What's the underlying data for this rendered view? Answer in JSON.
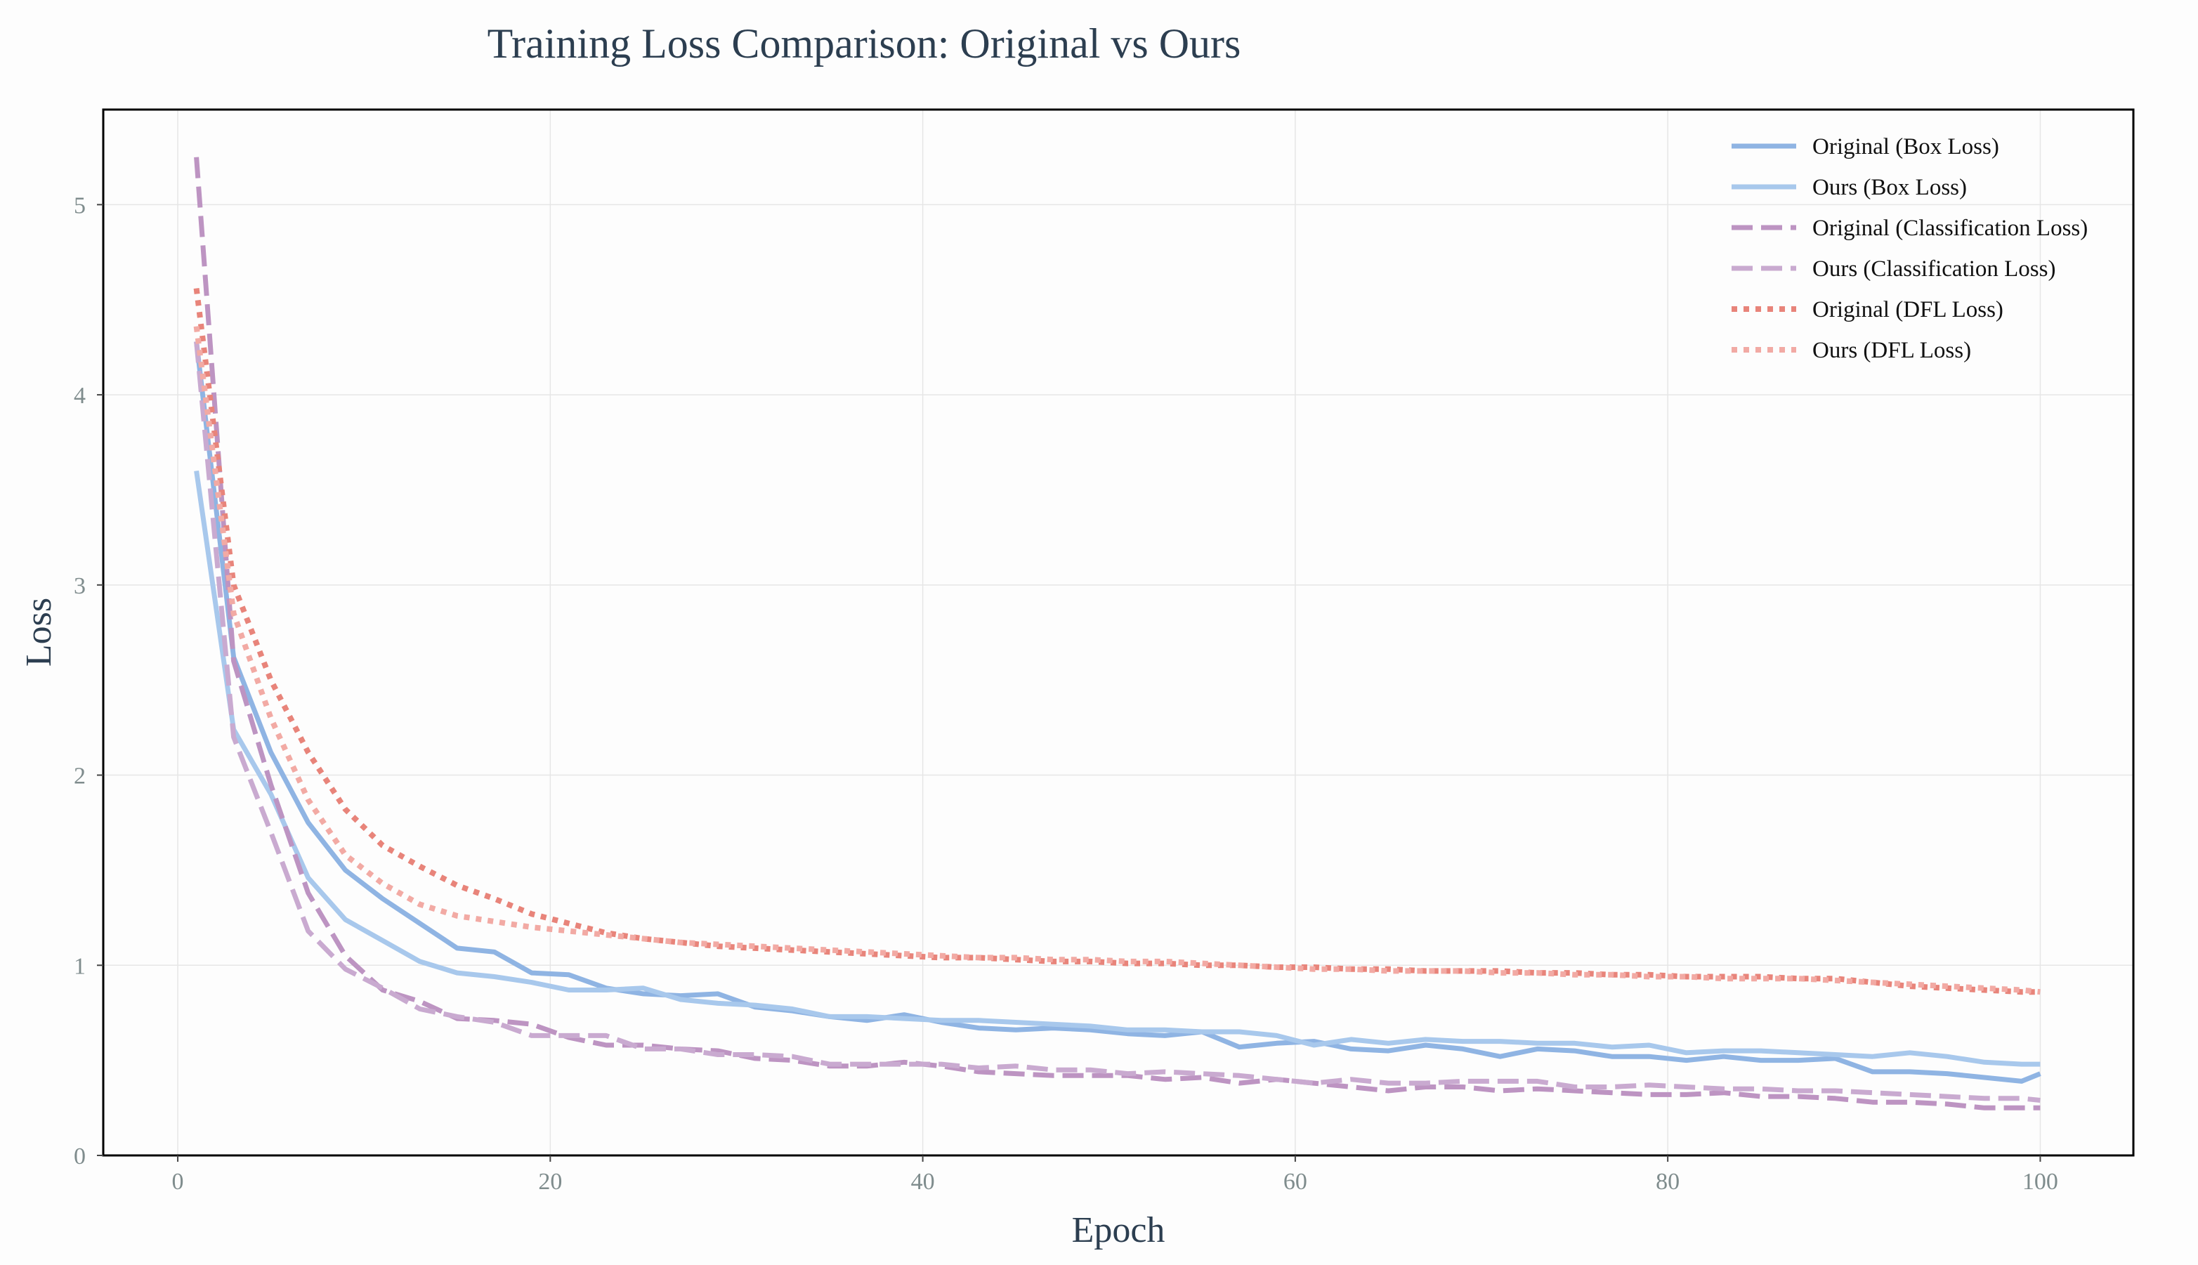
{
  "chart_data": {
    "type": "line",
    "title": "Training Loss Comparison: Original vs Ours",
    "xlabel": "Epoch",
    "ylabel": "Loss",
    "xlim": [
      -4,
      105
    ],
    "ylim": [
      0,
      5.5
    ],
    "xticks": [
      0,
      20,
      40,
      60,
      80,
      100
    ],
    "yticks": [
      0,
      1,
      2,
      3,
      4,
      5
    ],
    "grid": true,
    "legend_position": "top-right",
    "series": [
      {
        "name": "Original (Box Loss)",
        "color": "#8fb4e3",
        "dash": "solid",
        "width": 7,
        "x": [
          1,
          3,
          5,
          7,
          9,
          11,
          13,
          15,
          17,
          19,
          21,
          23,
          25,
          27,
          29,
          31,
          33,
          35,
          37,
          39,
          41,
          43,
          45,
          47,
          49,
          51,
          53,
          55,
          57,
          59,
          61,
          63,
          65,
          67,
          69,
          71,
          73,
          75,
          77,
          79,
          81,
          83,
          85,
          87,
          89,
          91,
          93,
          95,
          97,
          99,
          100
        ],
        "y": [
          4.28,
          2.62,
          2.12,
          1.75,
          1.5,
          1.35,
          1.22,
          1.09,
          1.07,
          0.96,
          0.95,
          0.88,
          0.85,
          0.84,
          0.85,
          0.78,
          0.76,
          0.73,
          0.71,
          0.74,
          0.7,
          0.67,
          0.66,
          0.67,
          0.66,
          0.64,
          0.63,
          0.65,
          0.57,
          0.59,
          0.6,
          0.56,
          0.55,
          0.58,
          0.56,
          0.52,
          0.56,
          0.55,
          0.52,
          0.52,
          0.5,
          0.52,
          0.5,
          0.5,
          0.51,
          0.44,
          0.44,
          0.43,
          0.41,
          0.39,
          0.43
        ]
      },
      {
        "name": "Ours (Box Loss)",
        "color": "#a8c8ec",
        "dash": "solid",
        "width": 7,
        "x": [
          1,
          3,
          5,
          7,
          9,
          11,
          13,
          15,
          17,
          19,
          21,
          23,
          25,
          27,
          29,
          31,
          33,
          35,
          37,
          39,
          41,
          43,
          45,
          47,
          49,
          51,
          53,
          55,
          57,
          59,
          61,
          63,
          65,
          67,
          69,
          71,
          73,
          75,
          77,
          79,
          81,
          83,
          85,
          87,
          89,
          91,
          93,
          95,
          97,
          99,
          100
        ],
        "y": [
          3.6,
          2.24,
          1.9,
          1.46,
          1.24,
          1.13,
          1.02,
          0.96,
          0.94,
          0.91,
          0.87,
          0.87,
          0.88,
          0.82,
          0.8,
          0.79,
          0.77,
          0.73,
          0.73,
          0.72,
          0.71,
          0.71,
          0.7,
          0.69,
          0.68,
          0.66,
          0.66,
          0.65,
          0.65,
          0.63,
          0.58,
          0.61,
          0.59,
          0.61,
          0.6,
          0.6,
          0.59,
          0.59,
          0.57,
          0.58,
          0.54,
          0.55,
          0.55,
          0.54,
          0.53,
          0.52,
          0.54,
          0.52,
          0.49,
          0.48,
          0.48
        ]
      },
      {
        "name": "Original (Classification Loss)",
        "color": "#bd94c2",
        "dash": "dashed",
        "width": 7,
        "x": [
          1,
          3,
          5,
          7,
          9,
          11,
          13,
          15,
          17,
          19,
          21,
          23,
          25,
          27,
          29,
          31,
          33,
          35,
          37,
          39,
          41,
          43,
          45,
          47,
          49,
          51,
          53,
          55,
          57,
          59,
          61,
          63,
          65,
          67,
          69,
          71,
          73,
          75,
          77,
          79,
          81,
          83,
          85,
          87,
          89,
          91,
          93,
          95,
          97,
          99,
          100
        ],
        "y": [
          5.25,
          2.6,
          1.95,
          1.38,
          1.05,
          0.87,
          0.81,
          0.72,
          0.71,
          0.69,
          0.62,
          0.58,
          0.58,
          0.56,
          0.55,
          0.51,
          0.5,
          0.47,
          0.47,
          0.49,
          0.47,
          0.44,
          0.43,
          0.42,
          0.42,
          0.42,
          0.4,
          0.41,
          0.38,
          0.4,
          0.38,
          0.36,
          0.34,
          0.36,
          0.36,
          0.34,
          0.35,
          0.34,
          0.33,
          0.32,
          0.32,
          0.33,
          0.31,
          0.31,
          0.3,
          0.28,
          0.28,
          0.27,
          0.25,
          0.25,
          0.25
        ]
      },
      {
        "name": "Ours (Classification Loss)",
        "color": "#c9aad0",
        "dash": "dashed",
        "width": 7,
        "x": [
          1,
          3,
          5,
          7,
          9,
          11,
          13,
          15,
          17,
          19,
          21,
          23,
          25,
          27,
          29,
          31,
          33,
          35,
          37,
          39,
          41,
          43,
          45,
          47,
          49,
          51,
          53,
          55,
          57,
          59,
          61,
          63,
          65,
          67,
          69,
          71,
          73,
          75,
          77,
          79,
          81,
          83,
          85,
          87,
          89,
          91,
          93,
          95,
          97,
          99,
          100
        ],
        "y": [
          4.28,
          2.2,
          1.7,
          1.18,
          0.98,
          0.88,
          0.77,
          0.73,
          0.7,
          0.63,
          0.63,
          0.63,
          0.56,
          0.56,
          0.53,
          0.53,
          0.52,
          0.48,
          0.48,
          0.48,
          0.48,
          0.46,
          0.47,
          0.45,
          0.45,
          0.43,
          0.44,
          0.43,
          0.42,
          0.4,
          0.38,
          0.4,
          0.38,
          0.38,
          0.39,
          0.39,
          0.39,
          0.36,
          0.36,
          0.37,
          0.36,
          0.35,
          0.35,
          0.34,
          0.34,
          0.33,
          0.32,
          0.31,
          0.3,
          0.3,
          0.29
        ]
      },
      {
        "name": "Original (DFL Loss)",
        "color": "#e8847a",
        "dash": "dotted",
        "width": 8,
        "x": [
          1,
          3,
          5,
          7,
          9,
          11,
          13,
          15,
          17,
          19,
          21,
          23,
          25,
          27,
          29,
          31,
          33,
          35,
          37,
          39,
          41,
          43,
          45,
          47,
          49,
          51,
          53,
          55,
          57,
          59,
          61,
          63,
          65,
          67,
          69,
          71,
          73,
          75,
          77,
          79,
          81,
          83,
          85,
          87,
          89,
          91,
          93,
          95,
          97,
          99,
          100
        ],
        "y": [
          4.56,
          3.0,
          2.5,
          2.12,
          1.82,
          1.63,
          1.52,
          1.42,
          1.35,
          1.27,
          1.22,
          1.17,
          1.14,
          1.12,
          1.1,
          1.09,
          1.08,
          1.07,
          1.06,
          1.05,
          1.04,
          1.04,
          1.03,
          1.02,
          1.02,
          1.01,
          1.01,
          1.0,
          1.0,
          0.99,
          0.99,
          0.98,
          0.98,
          0.97,
          0.97,
          0.97,
          0.96,
          0.96,
          0.95,
          0.95,
          0.94,
          0.94,
          0.94,
          0.93,
          0.93,
          0.91,
          0.89,
          0.88,
          0.87,
          0.86,
          0.86
        ]
      },
      {
        "name": "Ours (DFL Loss)",
        "color": "#f2aaa4",
        "dash": "dotted",
        "width": 8,
        "x": [
          1,
          3,
          5,
          7,
          9,
          11,
          13,
          15,
          17,
          19,
          21,
          23,
          25,
          27,
          29,
          31,
          33,
          35,
          37,
          39,
          41,
          43,
          45,
          47,
          49,
          51,
          53,
          55,
          57,
          59,
          61,
          63,
          65,
          67,
          69,
          71,
          73,
          75,
          77,
          79,
          81,
          83,
          85,
          87,
          89,
          91,
          93,
          95,
          97,
          99,
          100
        ],
        "y": [
          4.36,
          2.85,
          2.3,
          1.87,
          1.58,
          1.43,
          1.32,
          1.26,
          1.23,
          1.2,
          1.18,
          1.16,
          1.14,
          1.12,
          1.11,
          1.1,
          1.09,
          1.08,
          1.07,
          1.06,
          1.05,
          1.04,
          1.04,
          1.03,
          1.03,
          1.02,
          1.02,
          1.01,
          1.0,
          0.99,
          0.98,
          0.98,
          0.97,
          0.97,
          0.97,
          0.96,
          0.96,
          0.95,
          0.95,
          0.94,
          0.94,
          0.93,
          0.93,
          0.93,
          0.92,
          0.91,
          0.9,
          0.89,
          0.88,
          0.87,
          0.86
        ]
      }
    ]
  }
}
